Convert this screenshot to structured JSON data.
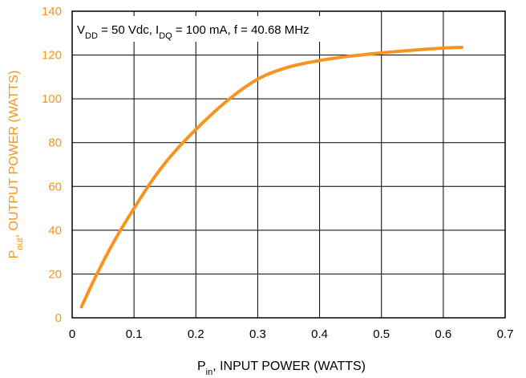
{
  "chart_data": {
    "type": "line",
    "title": "",
    "annotation": {
      "parts": [
        {
          "t": "V",
          "sub": "DD"
        },
        {
          "t": " = 50 Vdc, I",
          "sub": "DQ"
        },
        {
          "t": " = 100 mA, f = 40.68 MHz",
          "sub": ""
        }
      ]
    },
    "xlabel": {
      "main": "P",
      "sub": "in",
      "rest": ", INPUT POWER (WATTS)"
    },
    "ylabel": {
      "main": "P",
      "sub": "out",
      "rest": ", OUTPUT POWER (WATTS)"
    },
    "xlim": [
      0,
      0.7
    ],
    "ylim": [
      0,
      140
    ],
    "xticks": [
      0,
      0.1,
      0.2,
      0.3,
      0.4,
      0.5,
      0.6,
      0.7
    ],
    "xtick_labels": [
      "0",
      "0.1",
      "0.2",
      "0.3",
      "0.4",
      "0.5",
      "0.6",
      "0.7"
    ],
    "yticks": [
      0,
      20,
      40,
      60,
      80,
      100,
      120,
      140
    ],
    "ytick_labels": [
      "0",
      "20",
      "40",
      "60",
      "80",
      "100",
      "120",
      "140"
    ],
    "grid": true,
    "colors": {
      "curve": "#f7941d",
      "axis_label": "#f7941d",
      "grid": "#000000"
    },
    "series": [
      {
        "x": [
          0.015,
          0.04,
          0.07,
          0.1,
          0.13,
          0.16,
          0.2,
          0.25,
          0.3,
          0.35,
          0.4,
          0.45,
          0.5,
          0.55,
          0.6,
          0.63
        ],
        "y": [
          5,
          20,
          36,
          50,
          63,
          74,
          86,
          99,
          109,
          114.5,
          117.5,
          119.5,
          121,
          122.2,
          123.2,
          123.5
        ]
      }
    ]
  }
}
